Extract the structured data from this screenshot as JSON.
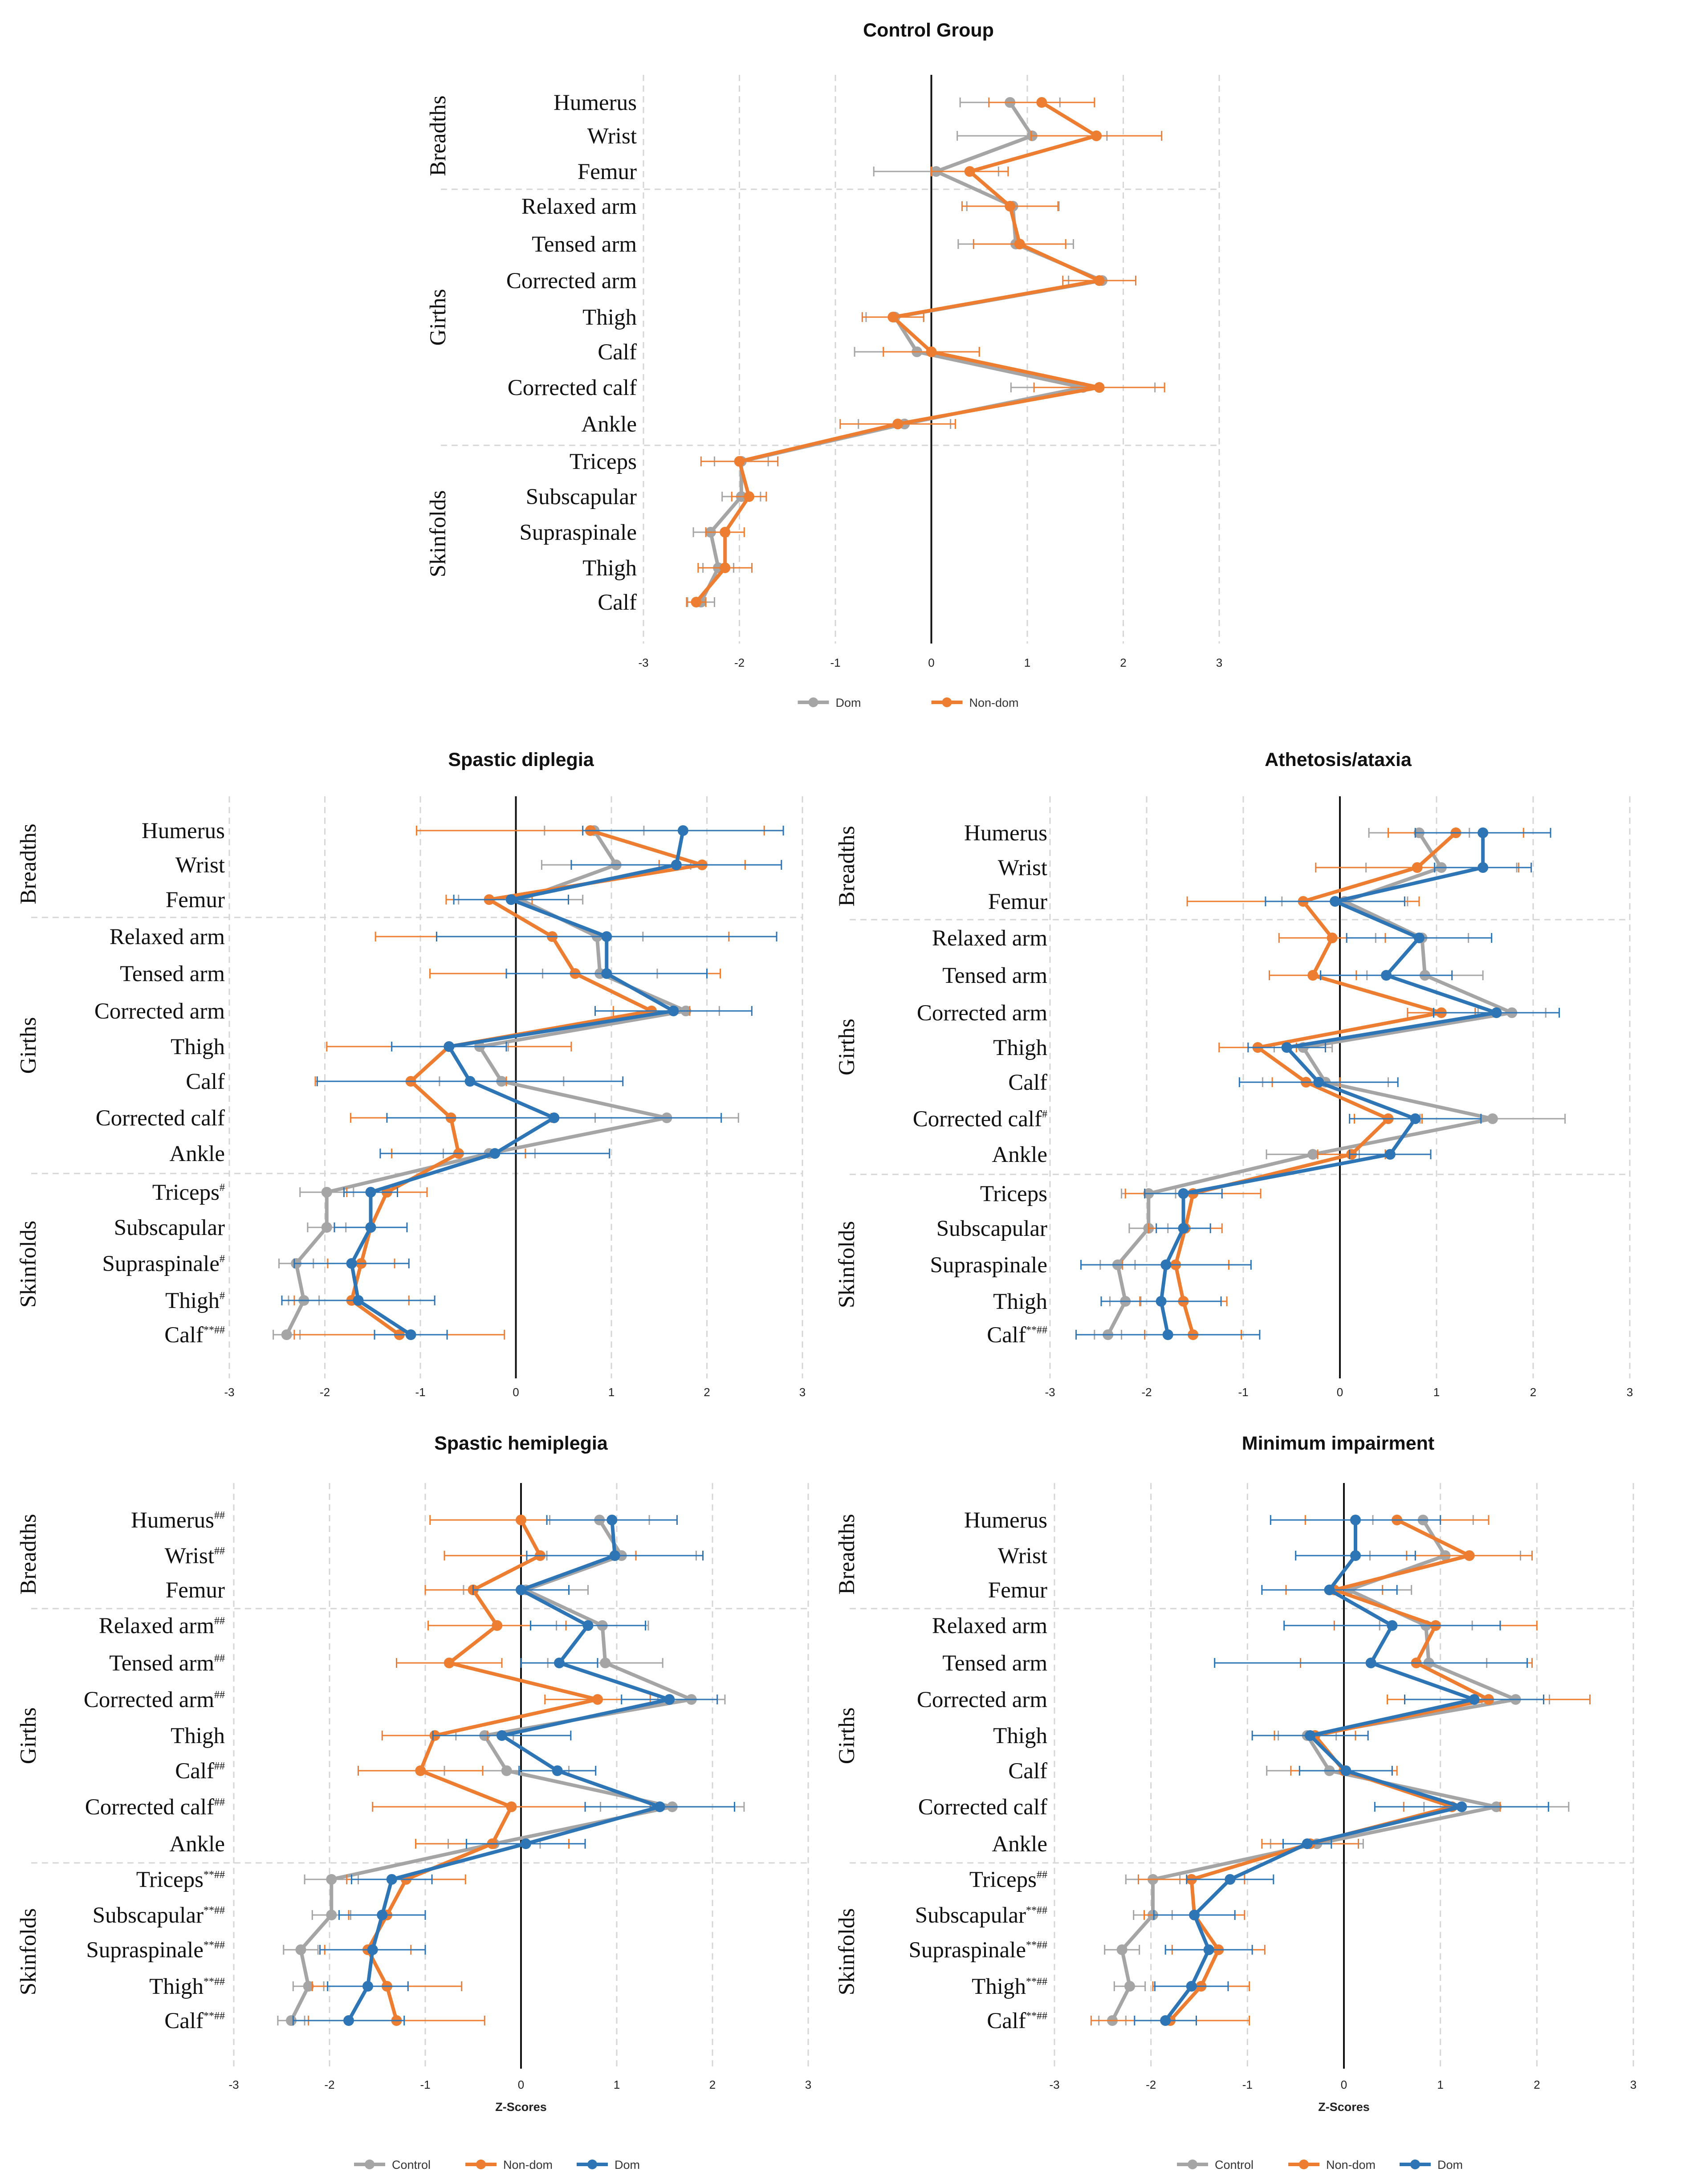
{
  "colors": {
    "control": "#a5a5a5",
    "nondom": "#ed7d31",
    "dom": "#2e75b6"
  },
  "labels": {
    "groups": {
      "breadths": "Breadths",
      "girths": "Girths",
      "skinfolds": "Skinfolds"
    },
    "series": {
      "dom": "Dom",
      "nondom": "Non-dom",
      "control": "Control"
    },
    "xlabel": "Z-Scores"
  },
  "chart_data": [
    {
      "type": "line",
      "title": "Control Group",
      "xlim": [
        -3,
        3
      ],
      "xticks": [
        -3,
        -2,
        -1,
        0,
        1,
        2,
        3
      ],
      "xlabel": "",
      "groups": [
        {
          "label": "Breadths",
          "count": 3
        },
        {
          "label": "Girths",
          "count": 7
        },
        {
          "label": "Skinfolds",
          "count": 5
        }
      ],
      "categories": [
        {
          "name": "Humerus",
          "mark": ""
        },
        {
          "name": "Wrist",
          "mark": ""
        },
        {
          "name": "Femur",
          "mark": ""
        },
        {
          "name": "Relaxed arm",
          "mark": ""
        },
        {
          "name": "Tensed arm",
          "mark": ""
        },
        {
          "name": "Corrected arm",
          "mark": ""
        },
        {
          "name": "Thigh",
          "mark": ""
        },
        {
          "name": "Calf",
          "mark": ""
        },
        {
          "name": "Corrected calf",
          "mark": ""
        },
        {
          "name": "Ankle",
          "mark": ""
        },
        {
          "name": "Triceps",
          "mark": ""
        },
        {
          "name": "Subscapular",
          "mark": ""
        },
        {
          "name": "Supraspinale",
          "mark": ""
        },
        {
          "name": "Thigh",
          "mark": ""
        },
        {
          "name": "Calf",
          "mark": ""
        }
      ],
      "legend": [
        "Dom",
        "Non-dom"
      ],
      "series": [
        {
          "name": "Dom",
          "color": "#a5a5a5",
          "values": [
            0.82,
            1.05,
            0.05,
            0.85,
            0.88,
            1.78,
            -0.38,
            -0.15,
            1.58,
            -0.28,
            -1.98,
            -1.98,
            -2.3,
            -2.22,
            -2.4
          ],
          "errors": [
            0.52,
            0.78,
            0.65,
            0.48,
            0.6,
            0.35,
            0.3,
            0.65,
            0.75,
            0.48,
            0.28,
            0.2,
            0.18,
            0.16,
            0.14
          ]
        },
        {
          "name": "Non-dom",
          "color": "#ed7d31",
          "values": [
            1.15,
            1.72,
            0.4,
            0.82,
            0.92,
            1.75,
            -0.4,
            0.0,
            1.75,
            -0.35,
            -2.0,
            -1.9,
            -2.15,
            -2.15,
            -2.45
          ],
          "errors": [
            0.55,
            0.68,
            0.4,
            0.5,
            0.48,
            0.38,
            0.32,
            0.5,
            0.68,
            0.6,
            0.4,
            0.18,
            0.2,
            0.28,
            0.1
          ]
        }
      ]
    },
    {
      "type": "line",
      "title": "Spastic diplegia",
      "xlim": [
        -3,
        3
      ],
      "xticks": [
        -3,
        -2,
        -1,
        0,
        1,
        2,
        3
      ],
      "xlabel": "",
      "groups": [
        {
          "label": "Breadths",
          "count": 3
        },
        {
          "label": "Girths",
          "count": 7
        },
        {
          "label": "Skinfolds",
          "count": 5
        }
      ],
      "categories": [
        {
          "name": "Humerus",
          "mark": ""
        },
        {
          "name": "Wrist",
          "mark": ""
        },
        {
          "name": "Femur",
          "mark": ""
        },
        {
          "name": "Relaxed arm",
          "mark": ""
        },
        {
          "name": "Tensed arm",
          "mark": ""
        },
        {
          "name": "Corrected arm",
          "mark": ""
        },
        {
          "name": "Thigh",
          "mark": ""
        },
        {
          "name": "Calf",
          "mark": ""
        },
        {
          "name": "Corrected calf",
          "mark": ""
        },
        {
          "name": "Ankle",
          "mark": ""
        },
        {
          "name": "Triceps",
          "mark": "#"
        },
        {
          "name": "Subscapular",
          "mark": ""
        },
        {
          "name": "Supraspinale",
          "mark": "#"
        },
        {
          "name": "Thigh",
          "mark": "#"
        },
        {
          "name": "Calf",
          "mark": "**##"
        }
      ],
      "legend": [],
      "series": [
        {
          "name": "Control",
          "color": "#a5a5a5",
          "values": [
            0.82,
            1.05,
            0.05,
            0.85,
            0.88,
            1.78,
            -0.38,
            -0.15,
            1.58,
            -0.28,
            -1.98,
            -1.98,
            -2.3,
            -2.22,
            -2.4
          ],
          "errors": [
            0.52,
            0.78,
            0.65,
            0.48,
            0.6,
            0.35,
            0.3,
            0.65,
            0.75,
            0.48,
            0.28,
            0.2,
            0.18,
            0.16,
            0.14
          ]
        },
        {
          "name": "Non-dom",
          "color": "#ed7d31",
          "values": [
            0.78,
            1.95,
            -0.28,
            0.38,
            0.62,
            1.42,
            -0.7,
            -1.1,
            -0.68,
            -0.6,
            -1.35,
            -1.52,
            -1.62,
            -1.72,
            -1.22
          ],
          "errors": [
            1.82,
            0.45,
            0.45,
            1.85,
            1.52,
            0.4,
            1.28,
            1.0,
            1.05,
            0.7,
            0.42,
            0.38,
            0.35,
            0.6,
            1.1
          ]
        },
        {
          "name": "Dom",
          "color": "#2e75b6",
          "values": [
            1.75,
            1.68,
            -0.05,
            0.95,
            0.95,
            1.65,
            -0.7,
            -0.48,
            0.4,
            -0.22,
            -1.52,
            -1.52,
            -1.72,
            -1.65,
            -1.1
          ],
          "errors": [
            1.05,
            1.1,
            0.6,
            1.78,
            1.05,
            0.82,
            0.6,
            1.6,
            1.75,
            1.2,
            0.28,
            0.38,
            0.6,
            0.8,
            0.38
          ]
        }
      ]
    },
    {
      "type": "line",
      "title": "Athetosis/ataxia",
      "xlim": [
        -3,
        3
      ],
      "xticks": [
        -3,
        -2,
        -1,
        0,
        1,
        2,
        3
      ],
      "xlabel": "",
      "groups": [
        {
          "label": "Breadths",
          "count": 3
        },
        {
          "label": "Girths",
          "count": 7
        },
        {
          "label": "Skinfolds",
          "count": 5
        }
      ],
      "categories": [
        {
          "name": "Humerus",
          "mark": ""
        },
        {
          "name": "Wrist",
          "mark": ""
        },
        {
          "name": "Femur",
          "mark": ""
        },
        {
          "name": "Relaxed arm",
          "mark": ""
        },
        {
          "name": "Tensed arm",
          "mark": ""
        },
        {
          "name": "Corrected arm",
          "mark": ""
        },
        {
          "name": "Thigh",
          "mark": ""
        },
        {
          "name": "Calf",
          "mark": ""
        },
        {
          "name": "Corrected calf",
          "mark": "#"
        },
        {
          "name": "Ankle",
          "mark": ""
        },
        {
          "name": "Triceps",
          "mark": ""
        },
        {
          "name": "Subscapular",
          "mark": ""
        },
        {
          "name": "Supraspinale",
          "mark": ""
        },
        {
          "name": "Thigh",
          "mark": ""
        },
        {
          "name": "Calf",
          "mark": "**##"
        }
      ],
      "legend": [],
      "series": [
        {
          "name": "Control",
          "color": "#a5a5a5",
          "values": [
            0.82,
            1.05,
            0.05,
            0.85,
            0.88,
            1.78,
            -0.38,
            -0.15,
            1.58,
            -0.28,
            -1.98,
            -1.98,
            -2.3,
            -2.22,
            -2.4
          ],
          "errors": [
            0.52,
            0.78,
            0.65,
            0.48,
            0.6,
            0.35,
            0.3,
            0.65,
            0.75,
            0.48,
            0.28,
            0.2,
            0.18,
            0.16,
            0.14
          ]
        },
        {
          "name": "Non-dom",
          "color": "#ed7d31",
          "values": [
            1.2,
            0.8,
            -0.38,
            -0.08,
            -0.28,
            1.05,
            -0.85,
            -0.35,
            0.5,
            0.12,
            -1.52,
            -1.6,
            -1.7,
            -1.62,
            -1.52
          ],
          "errors": [
            0.7,
            1.05,
            1.2,
            0.55,
            0.45,
            0.35,
            0.4,
            0.35,
            0.35,
            0.35,
            0.7,
            0.38,
            0.55,
            0.45,
            0.5
          ]
        },
        {
          "name": "Dom",
          "color": "#2e75b6",
          "values": [
            1.48,
            1.48,
            -0.05,
            0.82,
            0.48,
            1.62,
            -0.55,
            -0.22,
            0.78,
            0.52,
            -1.62,
            -1.62,
            -1.8,
            -1.85,
            -1.78
          ],
          "errors": [
            0.7,
            0.5,
            0.72,
            0.75,
            0.68,
            0.65,
            0.4,
            0.82,
            0.68,
            0.42,
            0.4,
            0.28,
            0.88,
            0.62,
            0.95
          ]
        }
      ]
    },
    {
      "type": "line",
      "title": "Spastic hemiplegia",
      "xlim": [
        -3,
        3
      ],
      "xticks": [
        -3,
        -2,
        -1,
        0,
        1,
        2,
        3
      ],
      "xlabel": "Z-Scores",
      "groups": [
        {
          "label": "Breadths",
          "count": 3
        },
        {
          "label": "Girths",
          "count": 7
        },
        {
          "label": "Skinfolds",
          "count": 5
        }
      ],
      "categories": [
        {
          "name": "Humerus",
          "mark": "##"
        },
        {
          "name": "Wrist",
          "mark": "##"
        },
        {
          "name": "Femur",
          "mark": ""
        },
        {
          "name": "Relaxed arm",
          "mark": "##"
        },
        {
          "name": "Tensed arm",
          "mark": "##"
        },
        {
          "name": "Corrected arm",
          "mark": "##"
        },
        {
          "name": "Thigh",
          "mark": ""
        },
        {
          "name": "Calf",
          "mark": "##"
        },
        {
          "name": "Corrected calf",
          "mark": "##"
        },
        {
          "name": "Ankle",
          "mark": ""
        },
        {
          "name": "Triceps",
          "mark": "**##"
        },
        {
          "name": "Subscapular",
          "mark": "**##"
        },
        {
          "name": "Supraspinale",
          "mark": "**##"
        },
        {
          "name": "Thigh",
          "mark": "**##"
        },
        {
          "name": "Calf",
          "mark": "**##"
        }
      ],
      "legend": [
        "Control",
        "Non-dom",
        "Dom"
      ],
      "series": [
        {
          "name": "Control",
          "color": "#a5a5a5",
          "values": [
            0.82,
            1.05,
            0.05,
            0.85,
            0.88,
            1.78,
            -0.38,
            -0.15,
            1.58,
            -0.28,
            -1.98,
            -1.98,
            -2.3,
            -2.22,
            -2.4
          ],
          "errors": [
            0.52,
            0.78,
            0.65,
            0.48,
            0.6,
            0.35,
            0.3,
            0.65,
            0.75,
            0.48,
            0.28,
            0.2,
            0.18,
            0.16,
            0.14
          ]
        },
        {
          "name": "Non-dom",
          "color": "#ed7d31",
          "values": [
            0.0,
            0.2,
            -0.5,
            -0.25,
            -0.75,
            0.8,
            -0.9,
            -1.05,
            -0.1,
            -0.3,
            -1.2,
            -1.4,
            -1.6,
            -1.4,
            -1.3
          ],
          "errors": [
            0.95,
            1.0,
            0.5,
            0.72,
            0.55,
            0.55,
            0.55,
            0.65,
            1.45,
            0.8,
            0.62,
            0.4,
            0.45,
            0.78,
            0.92
          ]
        },
        {
          "name": "Dom",
          "color": "#2e75b6",
          "values": [
            0.95,
            0.98,
            0.0,
            0.7,
            0.4,
            1.55,
            -0.2,
            0.38,
            1.45,
            0.05,
            -1.35,
            -1.45,
            -1.55,
            -1.6,
            -1.8
          ],
          "errors": [
            0.68,
            0.92,
            0.5,
            0.6,
            0.4,
            0.5,
            0.72,
            0.4,
            0.78,
            0.62,
            0.42,
            0.45,
            0.55,
            0.42,
            0.58
          ]
        }
      ]
    },
    {
      "type": "line",
      "title": "Minimum impairment",
      "xlim": [
        -3,
        3
      ],
      "xticks": [
        -3,
        -2,
        -1,
        0,
        1,
        2,
        3
      ],
      "xlabel": "Z-Scores",
      "groups": [
        {
          "label": "Breadths",
          "count": 3
        },
        {
          "label": "Girths",
          "count": 7
        },
        {
          "label": "Skinfolds",
          "count": 5
        }
      ],
      "categories": [
        {
          "name": "Humerus",
          "mark": ""
        },
        {
          "name": "Wrist",
          "mark": ""
        },
        {
          "name": "Femur",
          "mark": ""
        },
        {
          "name": "Relaxed arm",
          "mark": ""
        },
        {
          "name": "Tensed arm",
          "mark": ""
        },
        {
          "name": "Corrected arm",
          "mark": ""
        },
        {
          "name": "Thigh",
          "mark": ""
        },
        {
          "name": "Calf",
          "mark": ""
        },
        {
          "name": "Corrected calf",
          "mark": ""
        },
        {
          "name": "Ankle",
          "mark": ""
        },
        {
          "name": "Triceps",
          "mark": "##"
        },
        {
          "name": "Subscapular",
          "mark": "**##"
        },
        {
          "name": "Supraspinale",
          "mark": "**##"
        },
        {
          "name": "Thigh",
          "mark": "**##"
        },
        {
          "name": "Calf",
          "mark": "**##"
        }
      ],
      "legend": [
        "Control",
        "Non-dom",
        "Dom"
      ],
      "series": [
        {
          "name": "Control",
          "color": "#a5a5a5",
          "values": [
            0.82,
            1.05,
            0.05,
            0.85,
            0.88,
            1.78,
            -0.38,
            -0.15,
            1.58,
            -0.28,
            -1.98,
            -1.98,
            -2.3,
            -2.22,
            -2.4
          ],
          "errors": [
            0.52,
            0.78,
            0.65,
            0.48,
            0.6,
            0.35,
            0.3,
            0.65,
            0.75,
            0.48,
            0.28,
            0.2,
            0.18,
            0.16,
            0.14
          ]
        },
        {
          "name": "Non-dom",
          "color": "#ed7d31",
          "values": [
            0.55,
            1.3,
            -0.1,
            0.95,
            0.75,
            1.5,
            -0.3,
            0.0,
            1.12,
            -0.35,
            -1.58,
            -1.55,
            -1.3,
            -1.48,
            -1.8
          ],
          "errors": [
            0.95,
            0.65,
            0.5,
            1.05,
            1.2,
            1.05,
            0.42,
            0.55,
            0.5,
            0.5,
            0.55,
            0.52,
            0.48,
            0.5,
            0.82
          ]
        },
        {
          "name": "Dom",
          "color": "#2e75b6",
          "values": [
            0.12,
            0.12,
            -0.15,
            0.5,
            0.28,
            1.35,
            -0.35,
            0.02,
            1.22,
            -0.38,
            -1.18,
            -1.55,
            -1.4,
            -1.58,
            -1.85
          ],
          "errors": [
            0.88,
            0.62,
            0.7,
            1.12,
            1.62,
            0.72,
            0.6,
            0.48,
            0.9,
            0.25,
            0.45,
            0.42,
            0.45,
            0.38,
            0.32
          ]
        }
      ]
    }
  ]
}
